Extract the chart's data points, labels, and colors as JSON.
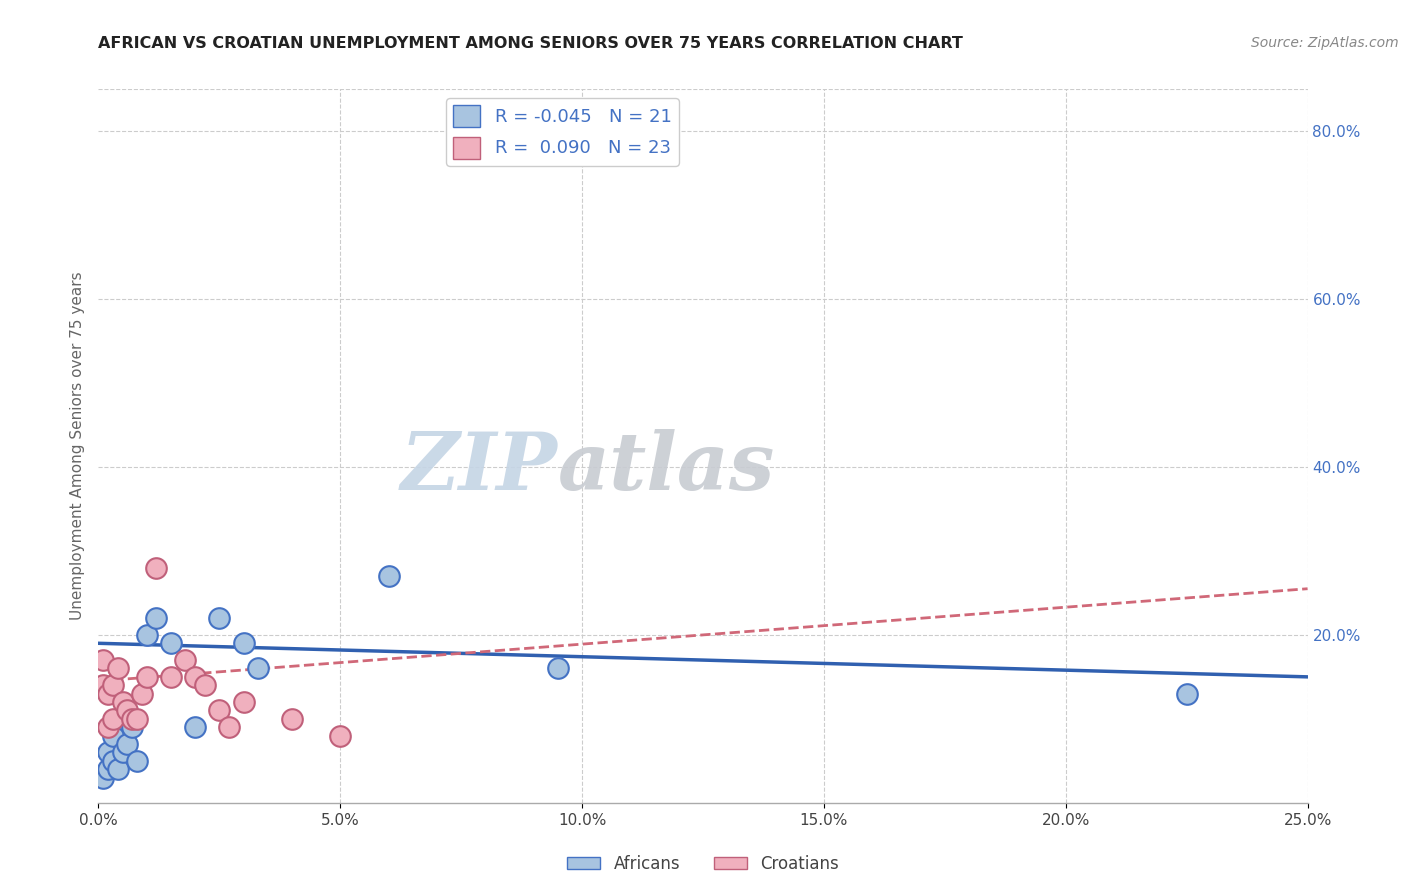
{
  "title": "AFRICAN VS CROATIAN UNEMPLOYMENT AMONG SENIORS OVER 75 YEARS CORRELATION CHART",
  "source": "Source: ZipAtlas.com",
  "ylabel": "Unemployment Among Seniors over 75 years",
  "xlim": [
    0.0,
    0.25
  ],
  "ylim": [
    0.0,
    0.85
  ],
  "xticks": [
    0.0,
    0.05,
    0.1,
    0.15,
    0.2,
    0.25
  ],
  "yticks": [
    0.2,
    0.4,
    0.6,
    0.8
  ],
  "background_color": "#ffffff",
  "grid_color": "#cccccc",
  "africans_color": "#a8c4e0",
  "africans_edge_color": "#4472c4",
  "africans_line_color": "#3060b0",
  "croatians_color": "#f0b0be",
  "croatians_edge_color": "#c0607a",
  "croatians_line_color": "#d06878",
  "right_axis_color": "#4472c4",
  "legend_R_african": "-0.045",
  "legend_N_african": "21",
  "legend_R_croatian": "0.090",
  "legend_N_croatian": "23",
  "africans_x": [
    0.001,
    0.002,
    0.002,
    0.003,
    0.003,
    0.004,
    0.005,
    0.005,
    0.006,
    0.007,
    0.008,
    0.01,
    0.012,
    0.015,
    0.02,
    0.025,
    0.03,
    0.033,
    0.06,
    0.095,
    0.225
  ],
  "africans_y": [
    0.03,
    0.04,
    0.06,
    0.05,
    0.08,
    0.04,
    0.06,
    0.1,
    0.07,
    0.09,
    0.05,
    0.2,
    0.22,
    0.19,
    0.09,
    0.22,
    0.19,
    0.16,
    0.27,
    0.16,
    0.13
  ],
  "croatians_x": [
    0.001,
    0.001,
    0.002,
    0.002,
    0.003,
    0.003,
    0.004,
    0.005,
    0.006,
    0.007,
    0.008,
    0.009,
    0.01,
    0.012,
    0.015,
    0.018,
    0.02,
    0.022,
    0.025,
    0.027,
    0.03,
    0.04,
    0.05
  ],
  "croatians_y": [
    0.14,
    0.17,
    0.09,
    0.13,
    0.1,
    0.14,
    0.16,
    0.12,
    0.11,
    0.1,
    0.1,
    0.13,
    0.15,
    0.28,
    0.15,
    0.17,
    0.15,
    0.14,
    0.11,
    0.09,
    0.12,
    0.1,
    0.08
  ],
  "watermark_zip_color": "#c8d8e8",
  "watermark_atlas_color": "#c8ccd0"
}
